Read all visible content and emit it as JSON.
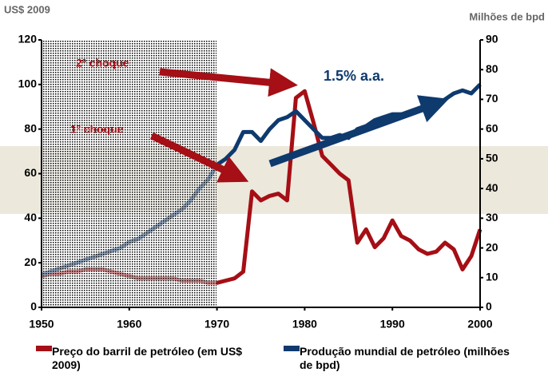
{
  "chart_data": {
    "type": "line",
    "y_label": "US$ 2009",
    "y2_label": "Milhões de bpd",
    "annotations": [
      "2º choque",
      "1º choque",
      "1.5% a.a."
    ],
    "x": [
      1950,
      1951,
      1952,
      1953,
      1954,
      1955,
      1956,
      1957,
      1958,
      1959,
      1960,
      1961,
      1962,
      1963,
      1964,
      1965,
      1966,
      1967,
      1968,
      1969,
      1970,
      1971,
      1972,
      1973,
      1974,
      1975,
      1976,
      1977,
      1978,
      1979,
      1980,
      1981,
      1982,
      1983,
      1984,
      1985,
      1986,
      1987,
      1988,
      1989,
      1990,
      1991,
      1992,
      1993,
      1994,
      1995,
      1996,
      1997,
      1998,
      1999,
      2000
    ],
    "series": [
      {
        "name": "Preço do barril de petróleo (em US$ 2009)",
        "color": "#a50f15",
        "axis": "y",
        "values": [
          14,
          15,
          15,
          16,
          16,
          17,
          17,
          17,
          16,
          15,
          14,
          13,
          13,
          13,
          13,
          13,
          12,
          12,
          12,
          11,
          11,
          12,
          13,
          16,
          52,
          48,
          50,
          51,
          48,
          94,
          97,
          83,
          68,
          64,
          60,
          57,
          29,
          35,
          27,
          31,
          39,
          32,
          30,
          26,
          24,
          25,
          29,
          26,
          17,
          23,
          35
        ]
      },
      {
        "name": "Produção mundial de petróleo (milhões de bpd)",
        "color": "#0e3a6e",
        "axis": "y2",
        "values": [
          11,
          12,
          13,
          14,
          15,
          16,
          17,
          18,
          19,
          20,
          22,
          23,
          25,
          27,
          29,
          31,
          33,
          36,
          40,
          43,
          48,
          50,
          53,
          59,
          59,
          56,
          60,
          63,
          64,
          66,
          63,
          60,
          57,
          57,
          58,
          57,
          60,
          61,
          63,
          64,
          65,
          65,
          65,
          66,
          67,
          68,
          70,
          72,
          73,
          72,
          75
        ]
      }
    ],
    "xlim": [
      1950,
      2000
    ],
    "xticks": [
      1950,
      1960,
      1970,
      1980,
      1990,
      2000
    ],
    "ylim": [
      0,
      120
    ],
    "yticks": [
      0,
      20,
      40,
      60,
      80,
      100,
      120
    ],
    "y2lim": [
      0,
      90
    ],
    "y2ticks": [
      0,
      10,
      20,
      30,
      40,
      50,
      60,
      70,
      80,
      90
    ]
  }
}
